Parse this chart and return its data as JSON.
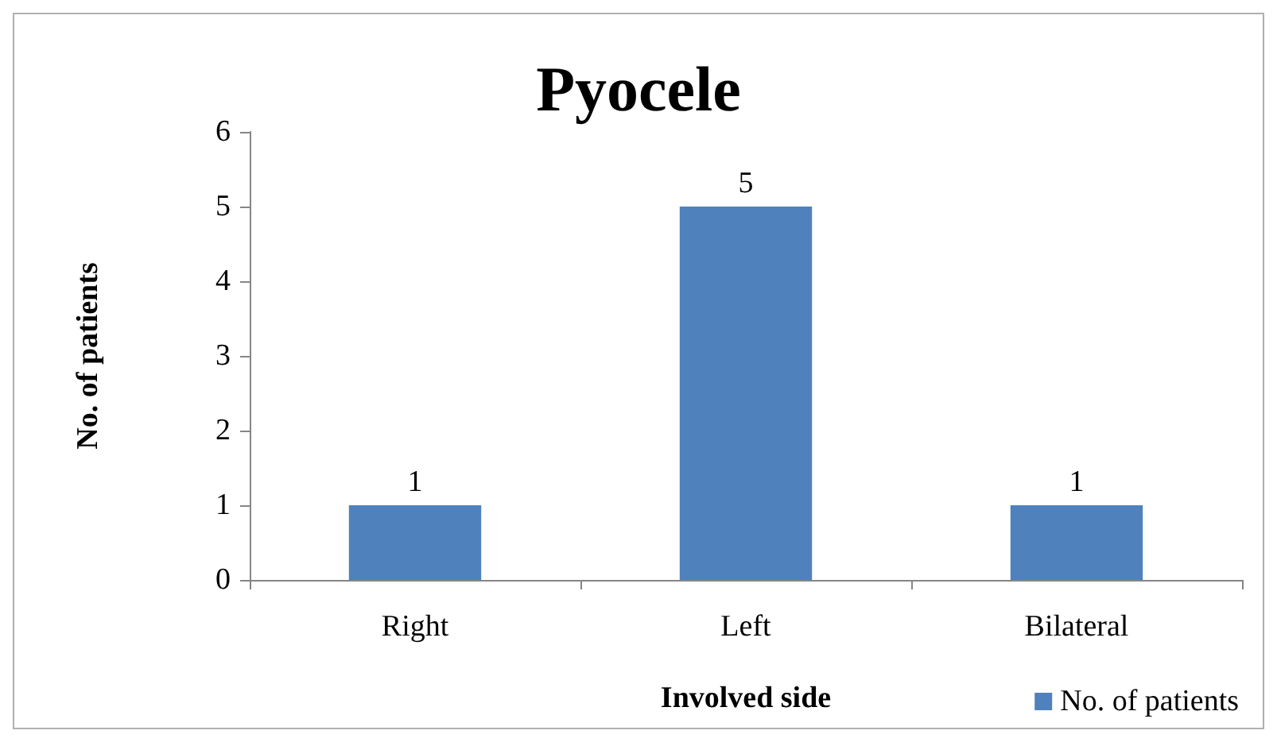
{
  "chart_data": {
    "type": "bar",
    "title": "Pyocele",
    "xlabel": "Involved side",
    "ylabel": "No. of patients",
    "categories": [
      "Right",
      "Left",
      "Bilateral"
    ],
    "series": [
      {
        "name": "No. of patients",
        "color": "#4f81bd",
        "values": [
          1,
          5,
          1
        ]
      }
    ],
    "ylim": [
      0,
      6
    ],
    "yticks": [
      0,
      1,
      2,
      3,
      4,
      5,
      6
    ],
    "grid": false,
    "legend": "bottom right",
    "data_labels": true
  }
}
